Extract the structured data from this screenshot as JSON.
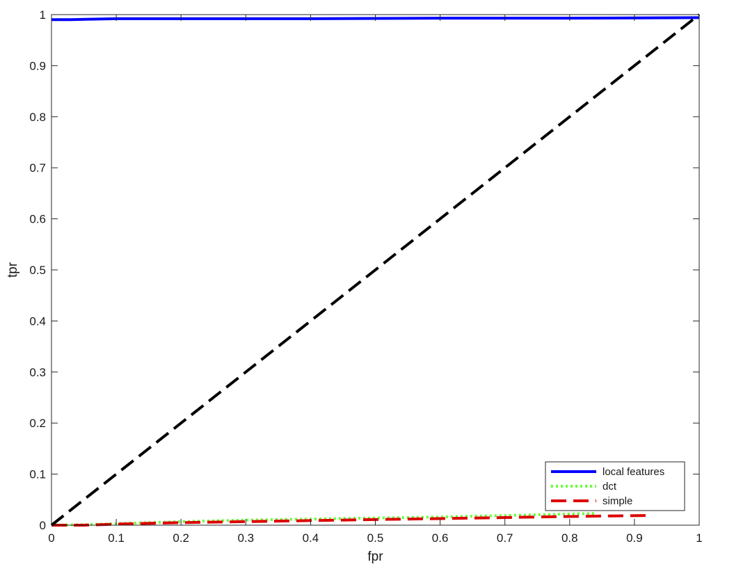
{
  "chart_data": {
    "type": "line",
    "title": "",
    "xlabel": "fpr",
    "ylabel": "tpr",
    "xlim": [
      0,
      1
    ],
    "ylim": [
      0,
      1
    ],
    "xticks": [
      "0",
      "0.1",
      "0.2",
      "0.3",
      "0.4",
      "0.5",
      "0.6",
      "0.7",
      "0.8",
      "0.9",
      "1"
    ],
    "yticks": [
      "0",
      "0.1",
      "0.2",
      "0.3",
      "0.4",
      "0.5",
      "0.6",
      "0.7",
      "0.8",
      "0.9",
      "1"
    ],
    "grid": false,
    "legend_position": "bottom-right",
    "series": [
      {
        "name": "local features",
        "color": "#0000ff",
        "style": "solid",
        "x": [
          0,
          0.03,
          0.06,
          0.1,
          0.2,
          0.4,
          0.6,
          0.8,
          1.0
        ],
        "y": [
          0.99,
          0.99,
          0.991,
          0.992,
          0.992,
          0.992,
          0.993,
          0.993,
          0.994
        ]
      },
      {
        "name": "dct",
        "color": "#66ff33",
        "style": "dotted",
        "x": [
          0,
          0.05,
          0.1,
          0.2,
          0.3,
          0.4,
          0.5,
          0.6,
          0.7,
          0.8,
          0.84
        ],
        "y": [
          0,
          0.001,
          0.003,
          0.007,
          0.01,
          0.012,
          0.014,
          0.016,
          0.019,
          0.022,
          0.023
        ]
      },
      {
        "name": "simple",
        "color": "#dd0000",
        "style": "dashed",
        "x": [
          0,
          0.05,
          0.1,
          0.2,
          0.3,
          0.4,
          0.5,
          0.6,
          0.7,
          0.8,
          0.92
        ],
        "y": [
          0,
          0,
          0.002,
          0.005,
          0.007,
          0.009,
          0.011,
          0.013,
          0.015,
          0.017,
          0.019
        ]
      },
      {
        "name": "",
        "color": "#000000",
        "style": "dashed",
        "x": [
          0,
          1
        ],
        "y": [
          0,
          1
        ]
      }
    ]
  }
}
